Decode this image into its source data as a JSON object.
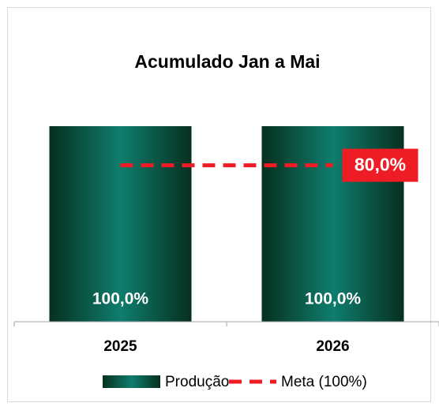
{
  "chart_data": {
    "type": "bar",
    "title": "Acumulado Jan a Mai",
    "categories": [
      "2025",
      "2026"
    ],
    "ylim": [
      0,
      100
    ],
    "series": [
      {
        "name": "Produção",
        "type": "bar",
        "color": "#0f7d6e",
        "values": [
          100,
          100
        ],
        "value_labels": [
          "100,0%",
          "100,0%"
        ]
      },
      {
        "name": "Meta (100%)",
        "type": "line",
        "color": "#ee1c25",
        "values": [
          80,
          80
        ],
        "value_labels": [
          null,
          "80,0%"
        ]
      }
    ]
  }
}
